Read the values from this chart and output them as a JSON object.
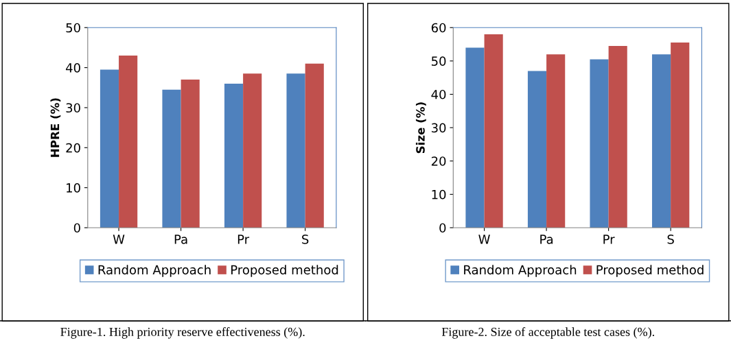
{
  "chart_data": [
    {
      "type": "bar",
      "ylabel": "HPRE (%)",
      "categories": [
        "W",
        "Pa",
        "Pr",
        "S"
      ],
      "ylim": [
        0,
        50
      ],
      "yticks": [
        0,
        10,
        20,
        30,
        40,
        50
      ],
      "legend": "bottom",
      "grid": false,
      "series": [
        {
          "name": "Random Approach",
          "color": "#4f81bd",
          "values": [
            39.5,
            34.5,
            36,
            38.5
          ]
        },
        {
          "name": "Proposed method",
          "color": "#c0504d",
          "values": [
            43,
            37,
            38.5,
            41
          ]
        }
      ],
      "annotations": [
        "Figure-1. High priority reserve effectiveness (%)."
      ]
    },
    {
      "type": "bar",
      "ylabel": "Size (%)",
      "categories": [
        "W",
        "Pa",
        "Pr",
        "S"
      ],
      "ylim": [
        0,
        60
      ],
      "yticks": [
        0,
        10,
        20,
        30,
        40,
        50,
        60
      ],
      "legend": "bottom",
      "grid": false,
      "series": [
        {
          "name": "Random Approach",
          "color": "#4f81bd",
          "values": [
            54,
            47,
            50.5,
            52
          ]
        },
        {
          "name": "Proposed method",
          "color": "#c0504d",
          "values": [
            58,
            52,
            54.5,
            55.5
          ]
        }
      ],
      "annotations": [
        "Figure-2. Size of acceptable test cases (%)."
      ]
    }
  ]
}
